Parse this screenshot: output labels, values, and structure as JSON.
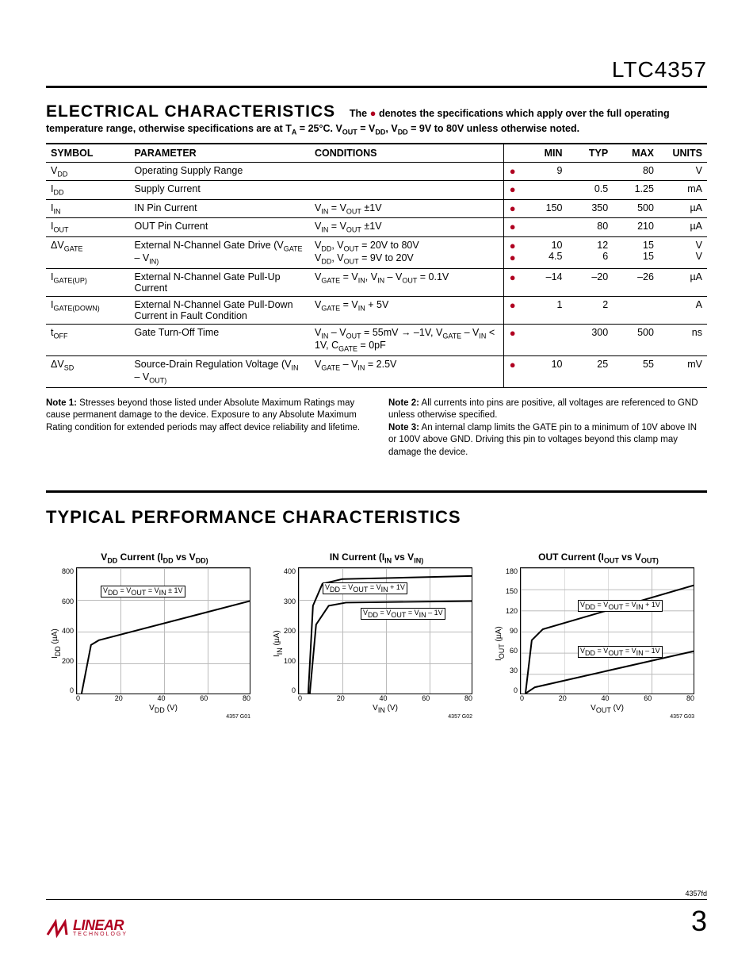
{
  "header": {
    "part_number": "LTC4357"
  },
  "section1": {
    "title": "ELECTRICAL CHARACTERISTICS",
    "note_inline_pre": "The ",
    "note_inline_post": " denotes the specifications which apply over the full operating",
    "subnote": "temperature range, otherwise specifications are at T_A = 25°C. V_OUT = V_DD, V_DD = 9V to 80V unless otherwise noted.",
    "columns": [
      "SYMBOL",
      "PARAMETER",
      "CONDITIONS",
      "",
      "MIN",
      "TYP",
      "MAX",
      "UNITS"
    ]
  },
  "spec_rows": [
    {
      "sym": "V_DD",
      "par": "Operating Supply Range",
      "cond": "",
      "dot": "●",
      "min": "9",
      "typ": "",
      "max": "80",
      "unit": "V"
    },
    {
      "sym": "I_DD",
      "par": "Supply Current",
      "cond": "",
      "dot": "●",
      "min": "",
      "typ": "0.5",
      "max": "1.25",
      "unit": "mA"
    },
    {
      "sym": "I_IN",
      "par": "IN Pin Current",
      "cond": "V_IN = V_OUT ±1V",
      "dot": "●",
      "min": "150",
      "typ": "350",
      "max": "500",
      "unit": "µA"
    },
    {
      "sym": "I_OUT",
      "par": "OUT Pin Current",
      "cond": "V_IN = V_OUT ±1V",
      "dot": "●",
      "min": "",
      "typ": "80",
      "max": "210",
      "unit": "µA"
    },
    {
      "sym": "ΔV_GATE",
      "par": "External N-Channel Gate Drive (V_GATE – V_IN)",
      "cond": "V_DD, V_OUT = 20V to 80V\nV_DD, V_OUT = 9V to 20V",
      "dot": "●\n●",
      "min": "10\n4.5",
      "typ": "12\n6",
      "max": "15\n15",
      "unit": "V\nV"
    },
    {
      "sym": "I_GATE(UP)",
      "par": "External N-Channel Gate Pull-Up Current",
      "cond": "V_GATE = V_IN, V_IN – V_OUT = 0.1V",
      "dot": "●",
      "min": "–14",
      "typ": "–20",
      "max": "–26",
      "unit": "µA"
    },
    {
      "sym": "I_GATE(DOWN)",
      "par": "External N-Channel Gate Pull-Down Current in Fault Condition",
      "cond": "V_GATE = V_IN + 5V",
      "dot": "●",
      "min": "1",
      "typ": "2",
      "max": "",
      "unit": "A"
    },
    {
      "sym": "t_OFF",
      "par": "Gate Turn-Off Time",
      "cond": "V_IN – V_OUT = 55mV → –1V, V_GATE – V_IN < 1V, C_GATE = 0pF",
      "dot": "●",
      "min": "",
      "typ": "300",
      "max": "500",
      "unit": "ns"
    },
    {
      "sym": "ΔV_SD",
      "par": "Source-Drain Regulation Voltage (V_IN – V_OUT)",
      "cond": "V_GATE – V_IN = 2.5V",
      "dot": "●",
      "min": "10",
      "typ": "25",
      "max": "55",
      "unit": "mV"
    }
  ],
  "notes": {
    "n1_label": "Note 1:",
    "n1": " Stresses beyond those listed under Absolute Maximum Ratings may cause permanent damage to the device. Exposure to any Absolute Maximum Rating condition for extended periods may affect device reliability and lifetime.",
    "n2_label": "Note 2:",
    "n2": " All currents into pins are positive, all voltages are referenced to GND unless otherwise specified.",
    "n3_label": "Note 3:",
    "n3": " An internal clamp limits the GATE pin to a minimum of 10V above IN or 100V above GND. Driving this pin to voltages beyond this clamp may damage the device."
  },
  "section2_title": "TYPICAL PERFORMANCE CHARACTERISTICS",
  "charts": [
    {
      "title": "V_DD Current (I_DD vs V_DD)",
      "ylabel": "I_DD (µA)",
      "yticks": [
        "800",
        "600",
        "400",
        "200",
        "0"
      ],
      "xlabel": "V_DD (V)",
      "xticks": [
        "0",
        "20",
        "40",
        "60",
        "80"
      ],
      "code": "4357 G01",
      "annot": [
        {
          "t": 22,
          "l": 30,
          "text": "V_DD = V_OUT = V_IN ± 1V"
        }
      ],
      "paths": [
        "M6,160 L18,98 L28,92 L220,42"
      ],
      "annot_style": "boxed"
    },
    {
      "title": "IN Current (I_IN vs V_IN)",
      "ylabel": "I_IN (µA)",
      "yticks": [
        "400",
        "300",
        "200",
        "100",
        "0"
      ],
      "xlabel": "V_IN (V)",
      "xticks": [
        "0",
        "20",
        "40",
        "60",
        "80"
      ],
      "code": "4357 G02",
      "annot": [
        {
          "t": 18,
          "l": 30,
          "text": "V_DD = V_OUT = V_IN + 1V"
        },
        {
          "t": 50,
          "l": 78,
          "text": "V_DD = V_OUT = V_IN – 1V"
        }
      ],
      "paths": [
        "M12,160 L18,48 L30,20 L55,14 L220,10",
        "M14,160 L22,72 L38,48 L60,44 L220,42"
      ]
    },
    {
      "title": "OUT Current (I_OUT vs V_OUT)",
      "ylabel": "I_OUT (µA)",
      "yticks": [
        "180",
        "150",
        "120",
        "90",
        "60",
        "30",
        "0"
      ],
      "xlabel": "V_OUT (V)",
      "xticks": [
        "0",
        "20",
        "40",
        "60",
        "80"
      ],
      "code": "4357 G03",
      "annot": [
        {
          "t": 40,
          "l": 72,
          "text": "V_DD = V_OUT = V_IN + 1V"
        },
        {
          "t": 98,
          "l": 72,
          "text": "V_DD = V_OUT = V_IN – 1V"
        }
      ],
      "paths": [
        "M6,160 L14,92 L28,78 L220,22",
        "M6,160 L18,152 L220,106"
      ],
      "gridY": 6
    }
  ],
  "footer": {
    "doc_code": "4357fd",
    "brand": "LINEAR",
    "brand_sub": "TECHNOLOGY",
    "page": "3"
  },
  "colors": {
    "bullet": "#b00020",
    "grid": "#bbbbbb",
    "line": "#000000"
  }
}
